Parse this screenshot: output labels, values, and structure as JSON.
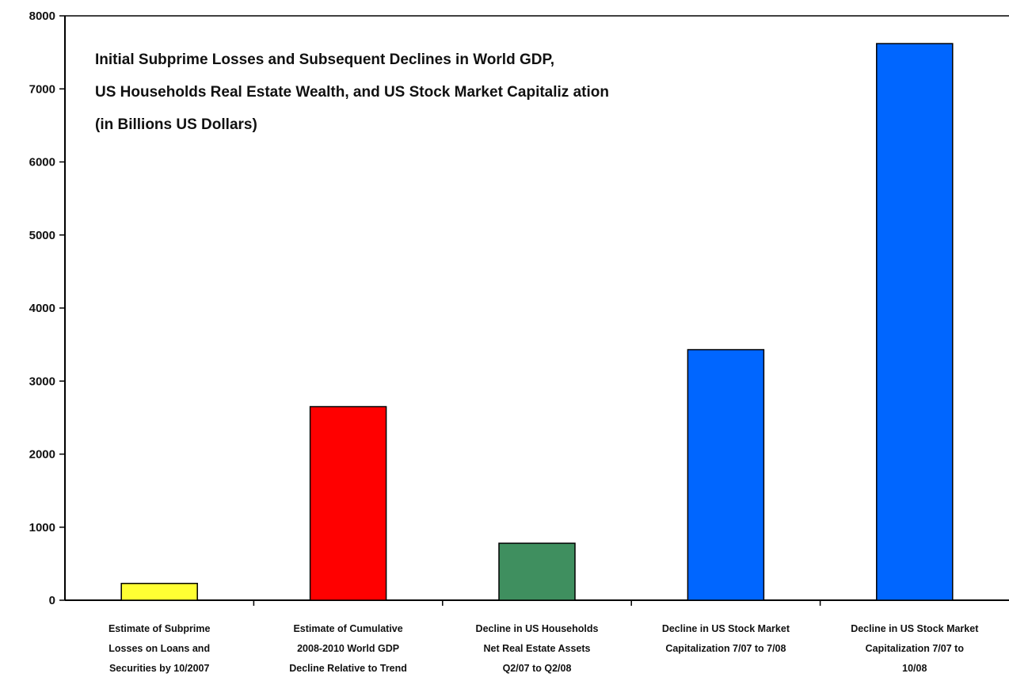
{
  "chart_data": {
    "type": "bar",
    "title_lines": [
      "Initial Subprime Losses and Subsequent Declines in World GDP,",
      "US Households Real Estate Wealth, and US Stock Market Capitaliz ation",
      "(in Billions US Dollars)"
    ],
    "categories": [
      [
        "Estimate of Subprime",
        "Losses on Loans and",
        "Securities by 10/2007"
      ],
      [
        "Estimate of Cumulative",
        "2008-2010 World GDP",
        "Decline Relative to Trend"
      ],
      [
        "Decline in US Households",
        "Net Real Estate Assets",
        "Q2/07 to Q2/08"
      ],
      [
        "Decline in US Stock Market",
        "Capitalization 7/07 to 7/08"
      ],
      [
        "Decline in US Stock Market",
        "Capitalization 7/07 to",
        "10/08"
      ]
    ],
    "values": [
      230,
      2650,
      780,
      3430,
      7620
    ],
    "colors": [
      "#ffff33",
      "#ff0000",
      "#3f8f5f",
      "#0066ff",
      "#0066ff"
    ],
    "yticks": [
      0,
      1000,
      2000,
      3000,
      4000,
      5000,
      6000,
      7000,
      8000
    ],
    "ylim": [
      0,
      8000
    ],
    "grid": false
  }
}
